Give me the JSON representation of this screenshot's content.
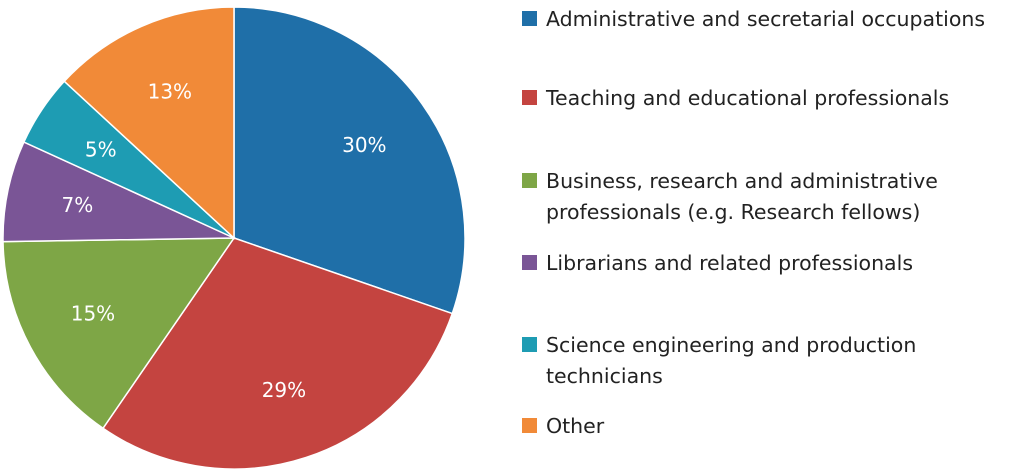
{
  "chart_data": {
    "type": "pie",
    "slices": [
      {
        "label": "Administrative and secretarial occupations",
        "value": 30,
        "display": "30%",
        "color": "#1f6fa8"
      },
      {
        "label": "Teaching and educational professionals",
        "value": 29,
        "display": "29%",
        "color": "#c44440"
      },
      {
        "label": "Business, research and administrative professionals (e.g. Research fellows)",
        "value": 15,
        "display": "15%",
        "color": "#7ea646"
      },
      {
        "label": "Librarians and related professionals",
        "value": 7,
        "display": "7%",
        "color": "#7a5596"
      },
      {
        "label": "Science engineering and production technicians",
        "value": 5,
        "display": "5%",
        "color": "#1e9cb3"
      },
      {
        "label": "Other",
        "value": 13,
        "display": "13%",
        "color": "#f18a38"
      }
    ],
    "start": "12 o'clock",
    "direction": "clockwise",
    "legend_position": "right"
  }
}
